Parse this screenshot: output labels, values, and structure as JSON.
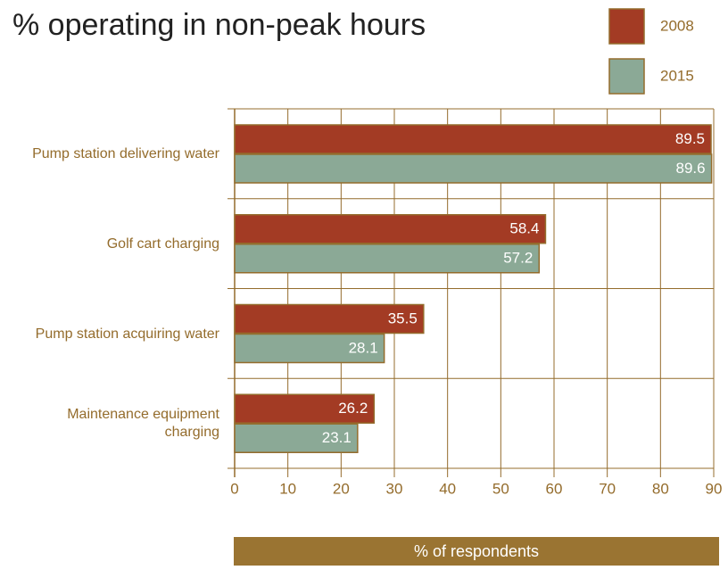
{
  "chart_data": {
    "type": "bar",
    "orientation": "horizontal",
    "title": "% operating in non-peak hours",
    "x_label": "% of respondents",
    "categories": [
      "Pump station delivering water",
      "Golf cart charging",
      "Pump station acquiring water",
      "Maintenance equipment charging"
    ],
    "series": [
      {
        "name": "2008",
        "color": "#a33b24",
        "values": [
          89.5,
          58.4,
          35.5,
          26.2
        ]
      },
      {
        "name": "2015",
        "color": "#8ba996",
        "values": [
          89.6,
          57.2,
          28.1,
          23.1
        ]
      }
    ],
    "xlim": [
      0,
      90
    ],
    "xticks": [
      0,
      10,
      20,
      30,
      40,
      50,
      60,
      70,
      80,
      90
    ],
    "grid": true,
    "legend": "top right"
  }
}
